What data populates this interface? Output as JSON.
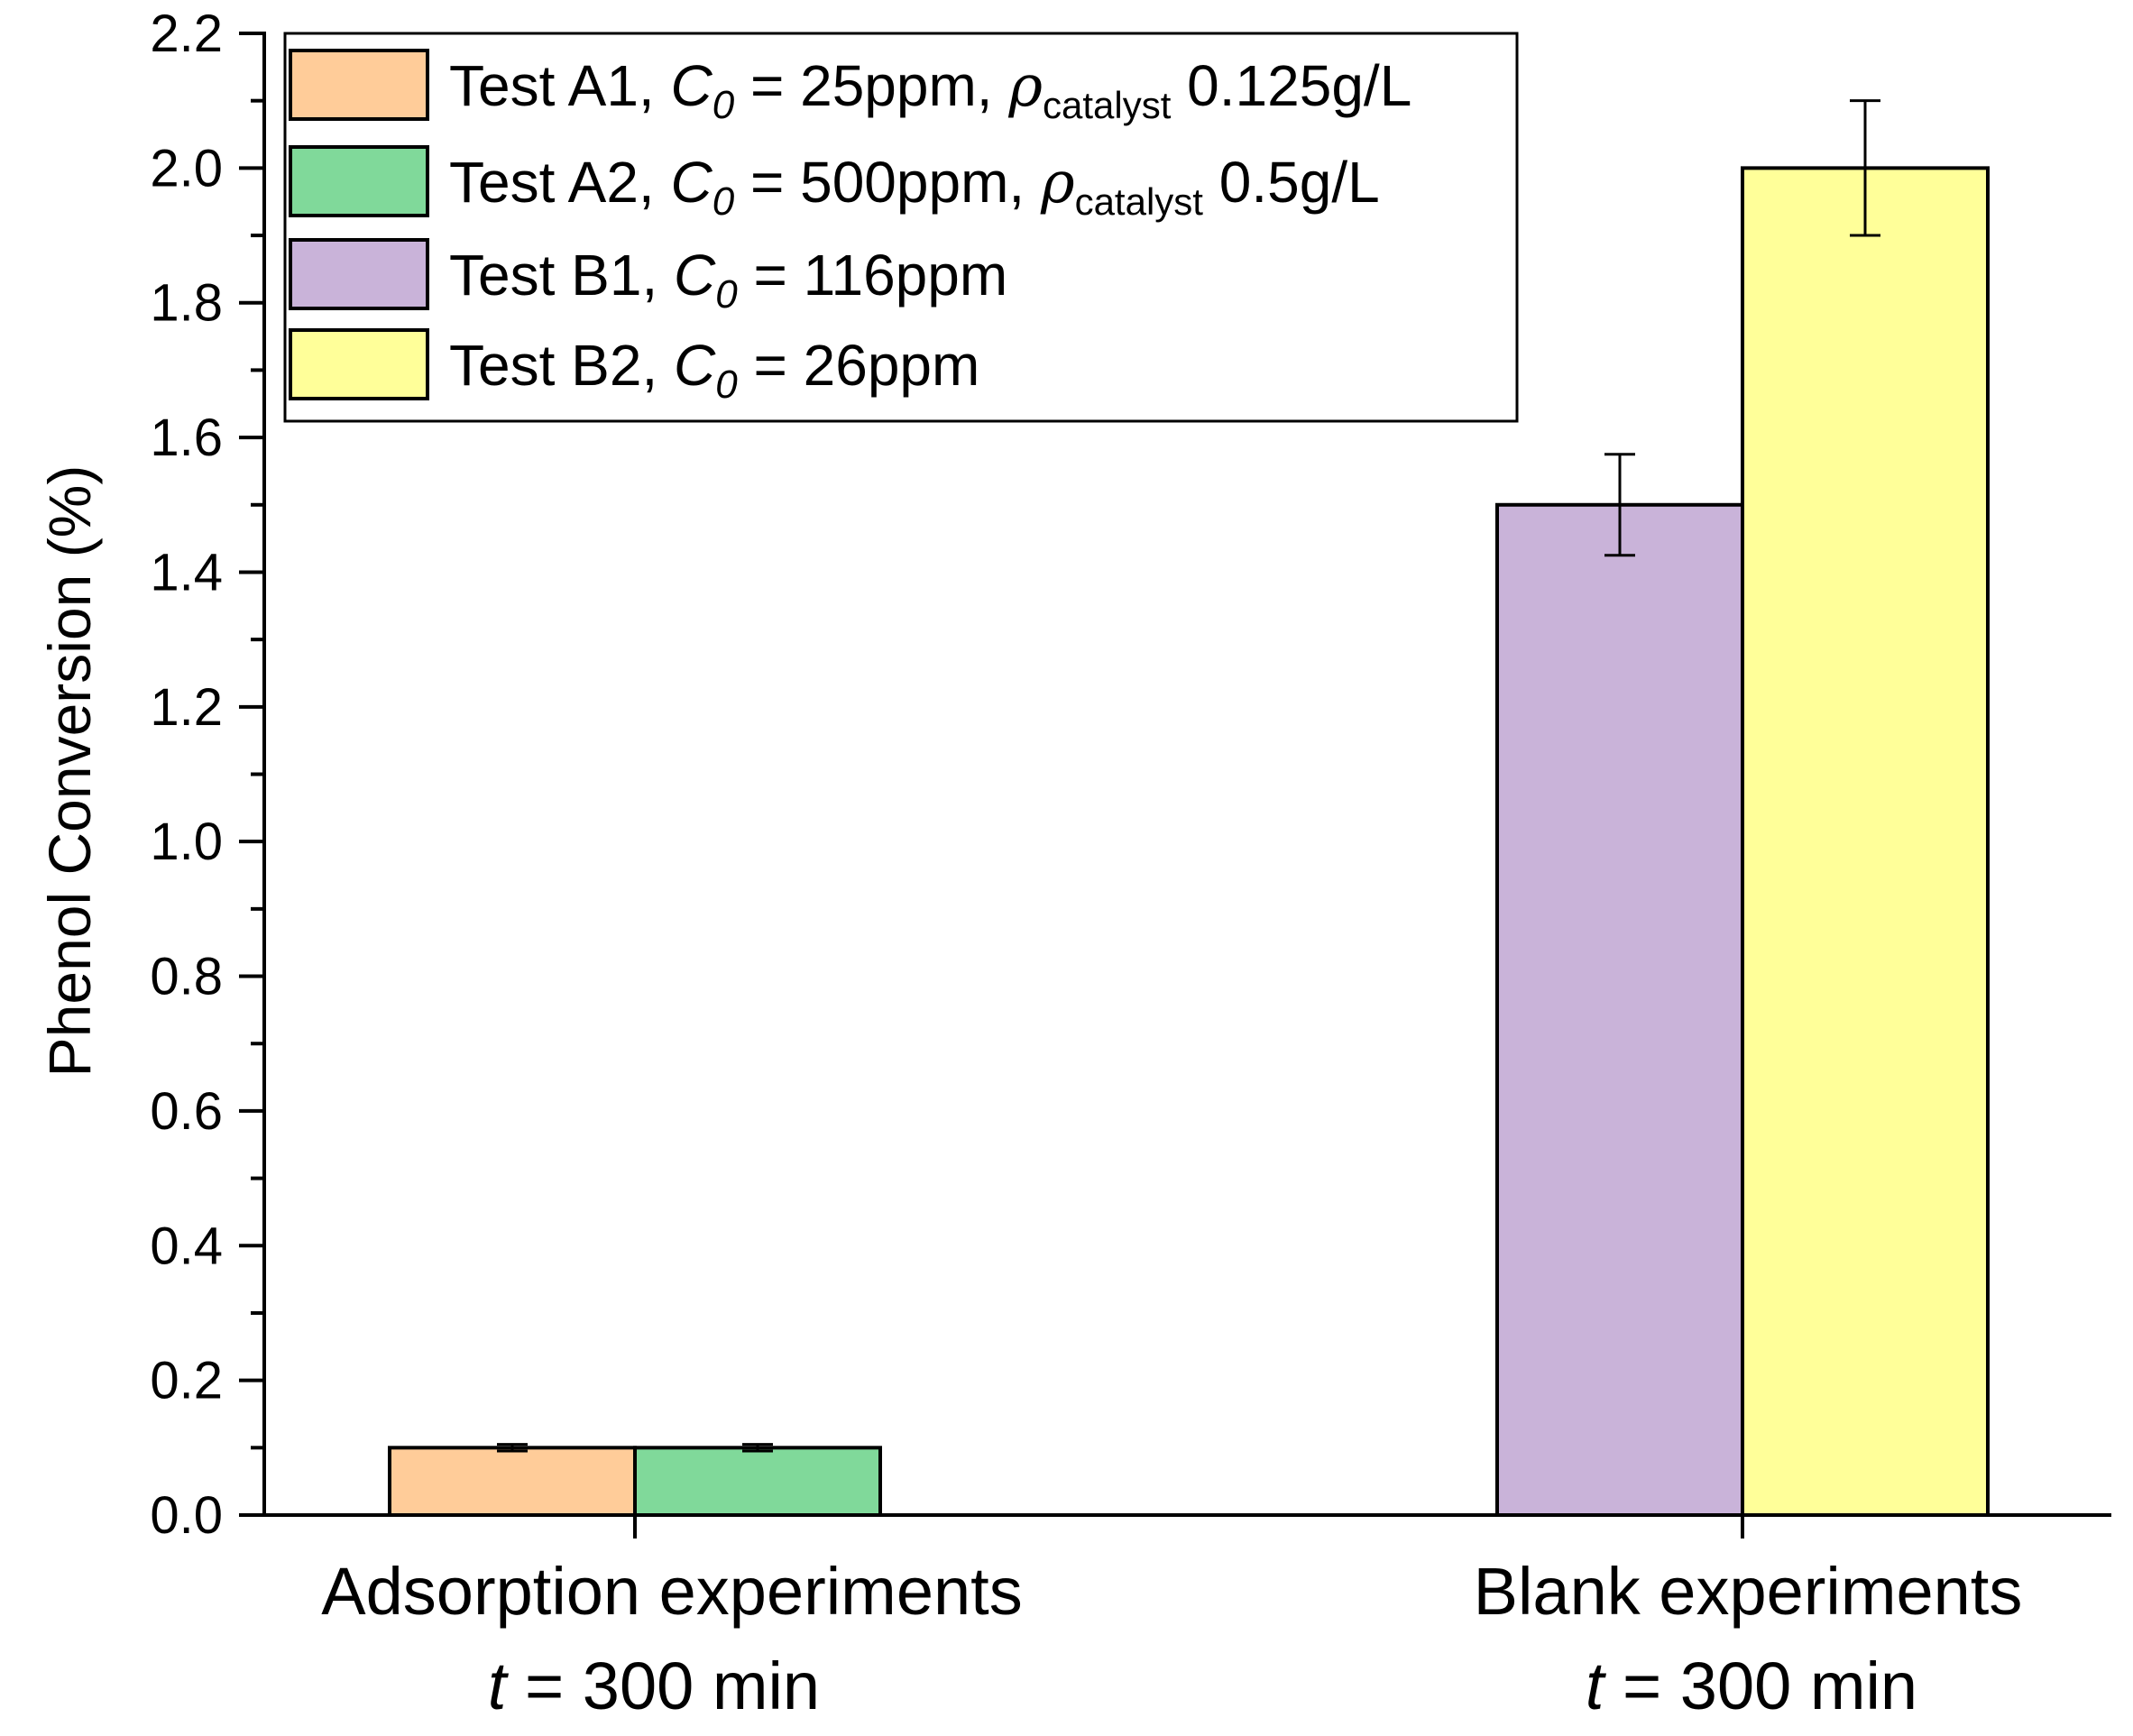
{
  "chart_data": {
    "type": "bar",
    "title": "",
    "xlabel": "",
    "ylabel": "Phenol Conversion (%)",
    "ylim": [
      0.0,
      2.2
    ],
    "yticks": [
      0.0,
      0.2,
      0.4,
      0.6,
      0.8,
      1.0,
      1.2,
      1.4,
      1.6,
      1.8,
      2.0,
      2.2
    ],
    "ytick_labels": [
      "0.0",
      "0.2",
      "0.4",
      "0.6",
      "0.8",
      "1.0",
      "1.2",
      "1.4",
      "1.6",
      "1.8",
      "2.0",
      "2.2"
    ],
    "grid": false,
    "legend_position": "top-left",
    "categories": [
      {
        "line1": "Adsorption experiments",
        "line2_var": "t",
        "line2_rest": " = 300 min"
      },
      {
        "line1": "Blank experiments",
        "line2_var": "t",
        "line2_rest": " = 300 min"
      }
    ],
    "series": [
      {
        "name": "Test A1",
        "label_prefix": "Test A1, ",
        "c_symbol": "C",
        "c_sub": "0",
        "c_value": " = 25ppm, ",
        "rho_symbol": "ρ",
        "rho_sub": "catalyst",
        "rho_value": " 0.125g/L",
        "color": "#FFCC99",
        "category": 0,
        "value": 0.1,
        "error": 0.005
      },
      {
        "name": "Test A2",
        "label_prefix": "Test A2, ",
        "c_symbol": "C",
        "c_sub": "0",
        "c_value": " = 500ppm, ",
        "rho_symbol": "ρ",
        "rho_sub": "catalyst",
        "rho_value": " 0.5g/L",
        "color": "#80D99A",
        "category": 0,
        "value": 0.1,
        "error": 0.005
      },
      {
        "name": "Test B1",
        "label_prefix": "Test B1, ",
        "c_symbol": "C",
        "c_sub": "0",
        "c_value": " = 116ppm",
        "color": "#C9B3D9",
        "category": 1,
        "value": 1.5,
        "error": 0.075
      },
      {
        "name": "Test B2",
        "label_prefix": "Test B2, ",
        "c_symbol": "C",
        "c_sub": "0",
        "c_value": " = 26ppm",
        "color": "#FFFF99",
        "category": 1,
        "value": 2.0,
        "error": 0.1
      }
    ]
  }
}
